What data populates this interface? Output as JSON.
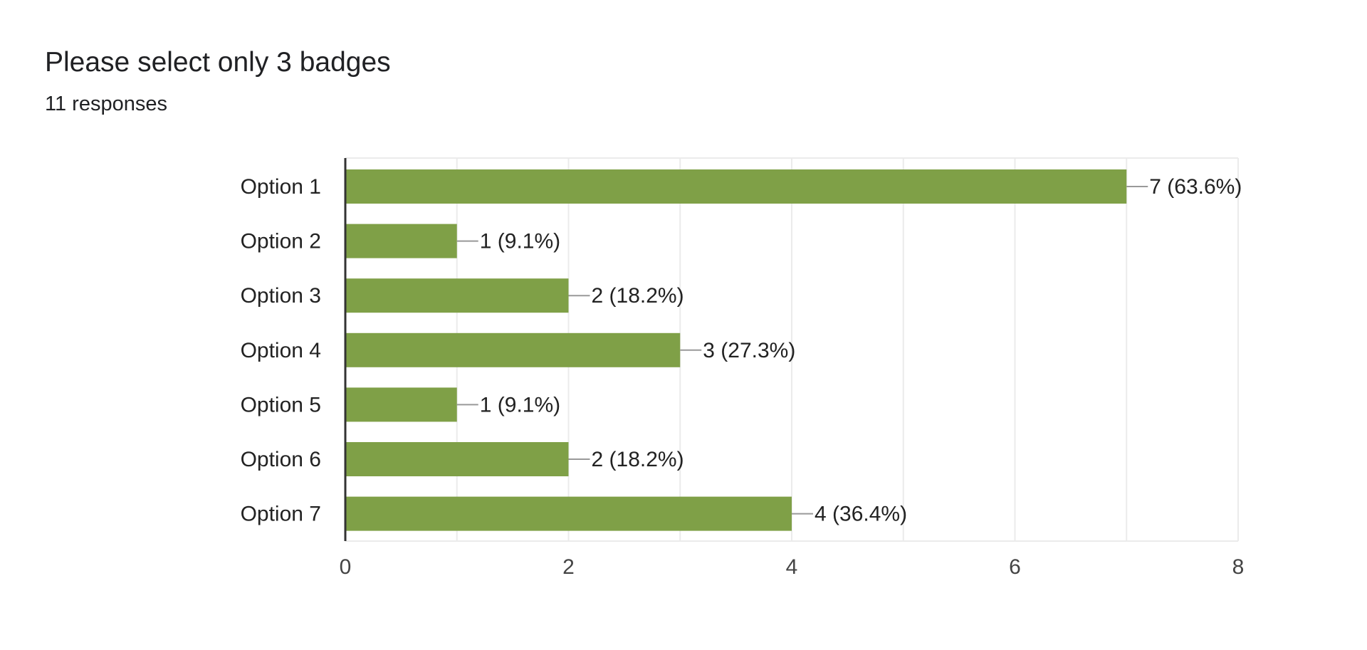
{
  "question": {
    "title": "Please select only 3 badges",
    "responses": "11 responses"
  },
  "chart_data": {
    "type": "bar",
    "orientation": "horizontal",
    "categories": [
      "Option 1",
      "Option 2",
      "Option 3",
      "Option 4",
      "Option 5",
      "Option 6",
      "Option 7"
    ],
    "values": [
      7,
      1,
      2,
      3,
      1,
      2,
      4
    ],
    "data_labels": [
      "7 (63.6%)",
      "1 (9.1%)",
      "2 (18.2%)",
      "3 (27.3%)",
      "1 (9.1%)",
      "2 (18.2%)",
      "4 (36.4%)"
    ],
    "xlim": [
      0,
      8
    ],
    "x_ticks": [
      0,
      2,
      4,
      6,
      8
    ],
    "title": "",
    "xlabel": "",
    "ylabel": "",
    "grid": true,
    "legend": "none",
    "bar_color": "#7fa047"
  }
}
